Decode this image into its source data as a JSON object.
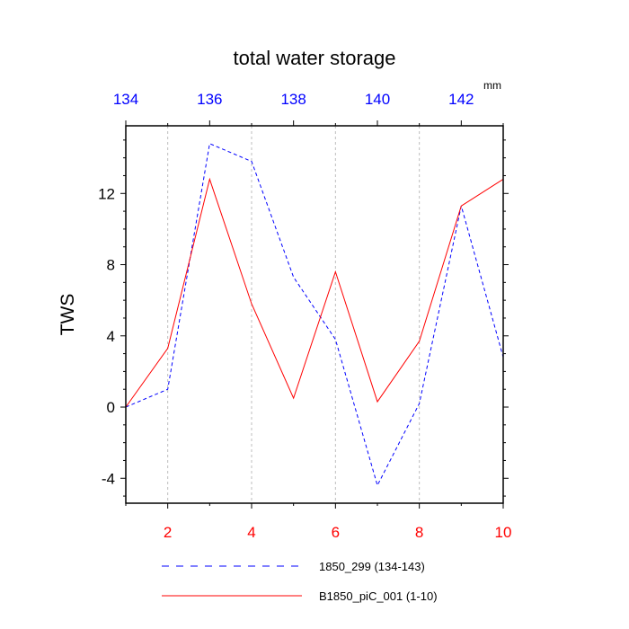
{
  "chart_data": {
    "type": "line",
    "title": "total water storage",
    "ylabel": "TWS",
    "units_label": "mm",
    "ylim": [
      -5.4,
      15.8
    ],
    "yticks": [
      -4,
      0,
      4,
      8,
      12
    ],
    "top_axis": {
      "range": [
        134,
        143
      ],
      "ticks": [
        134,
        136,
        138,
        140,
        142
      ],
      "color": "#0000ff"
    },
    "bottom_axis": {
      "range": [
        1,
        10
      ],
      "ticks": [
        2,
        4,
        6,
        8,
        10
      ],
      "color": "#ff0000"
    },
    "grid": "vertical-dashed-at-bottom-ticks",
    "series": [
      {
        "name": "1850_299 (134-143)",
        "axis": "top",
        "style": "dashed",
        "color": "#0000ff",
        "x": [
          134,
          135,
          136,
          137,
          138,
          139,
          140,
          141,
          142,
          143
        ],
        "values": [
          0,
          1.0,
          14.8,
          13.8,
          7.3,
          3.8,
          -4.4,
          0.2,
          11.3,
          2.8
        ]
      },
      {
        "name": "B1850_piC_001 (1-10)",
        "axis": "bottom",
        "style": "solid",
        "color": "#ff0000",
        "x": [
          1,
          2,
          3,
          4,
          5,
          6,
          7,
          8,
          9,
          10
        ],
        "values": [
          0,
          3.3,
          12.8,
          5.8,
          0.5,
          7.6,
          0.3,
          3.7,
          11.3,
          12.8
        ]
      }
    ],
    "legend_position": "bottom"
  }
}
